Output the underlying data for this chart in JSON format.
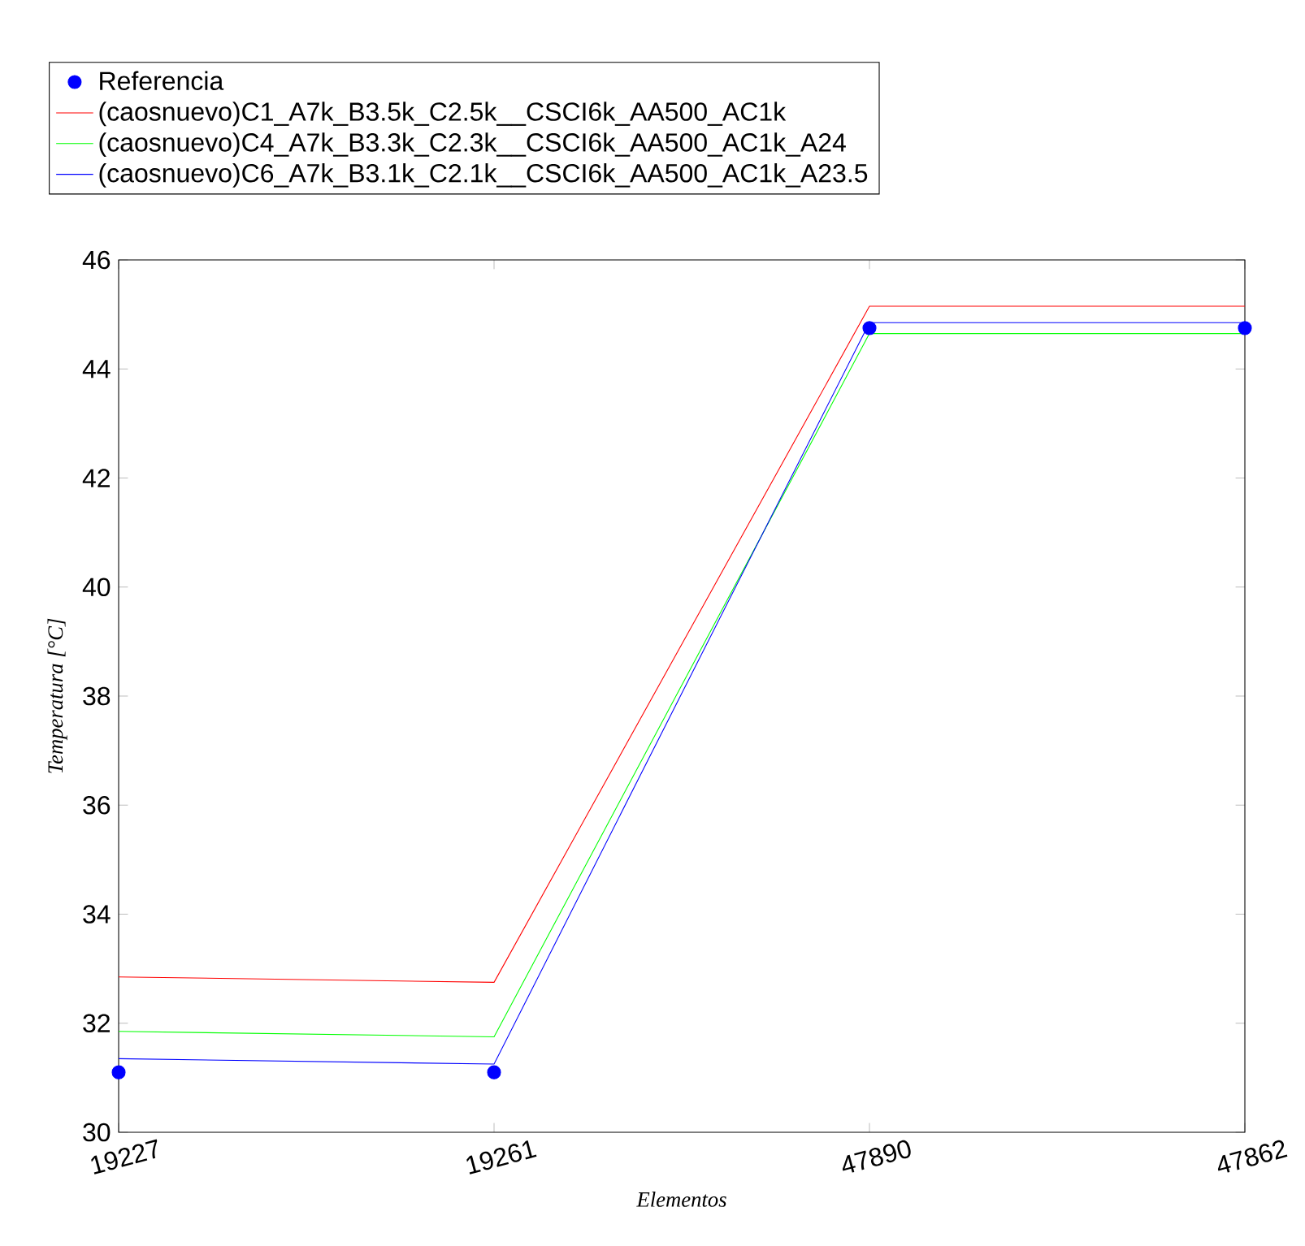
{
  "chart_data": {
    "type": "line",
    "xlabel": "Elementos",
    "ylabel": "Temperatura [°C]",
    "categories": [
      "19227",
      "19261",
      "47890",
      "47862"
    ],
    "series": [
      {
        "name": "Referencia",
        "type": "scatter",
        "marker": "circle",
        "color": "#0000ff",
        "values": [
          31.1,
          31.1,
          44.75,
          44.75
        ]
      },
      {
        "name": "(caosnuevo)C1_A7k_B3.5k_C2.5k__CSCI6k_AA500_AC1k",
        "color": "#ff0000",
        "values": [
          32.85,
          32.75,
          45.15,
          45.15
        ]
      },
      {
        "name": "(caosnuevo)C4_A7k_B3.3k_C2.3k__CSCI6k_AA500_AC1k_A24",
        "color": "#00ff00",
        "values": [
          31.85,
          31.75,
          44.65,
          44.65
        ]
      },
      {
        "name": "(caosnuevo)C6_A7k_B3.1k_C2.1k__CSCI6k_AA500_AC1k_A23.5",
        "color": "#0000ff",
        "values": [
          31.35,
          31.25,
          44.85,
          44.85
        ]
      }
    ],
    "ylim": [
      30,
      46
    ],
    "yticks": [
      30,
      32,
      34,
      36,
      38,
      40,
      42,
      44,
      46
    ],
    "grid": false,
    "legend": "top"
  }
}
